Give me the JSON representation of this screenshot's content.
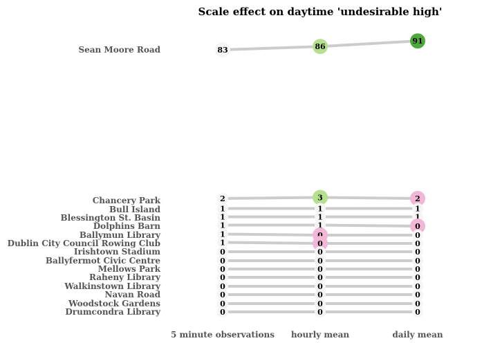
{
  "chart_data": {
    "type": "slope",
    "title": "Scale effect on daytime 'undesirable high'",
    "xlabel": "",
    "ylabel": "",
    "x": [
      "5 minute observations",
      "hourly mean",
      "daily mean"
    ],
    "series": [
      {
        "name": "Sean Moore Road",
        "values": [
          83,
          86,
          91
        ]
      },
      {
        "name": "Chancery Park",
        "values": [
          2,
          3,
          2
        ]
      },
      {
        "name": "Bull Island",
        "values": [
          1,
          1,
          1
        ]
      },
      {
        "name": "Blessington St. Basin",
        "values": [
          1,
          1,
          1
        ]
      },
      {
        "name": "Dolphins Barn",
        "values": [
          1,
          1,
          0
        ]
      },
      {
        "name": "Ballymun Library",
        "values": [
          1,
          0,
          0
        ]
      },
      {
        "name": "Dublin City Council Rowing Club",
        "values": [
          1,
          0,
          0
        ]
      },
      {
        "name": "Irishtown Stadium",
        "values": [
          0,
          0,
          0
        ]
      },
      {
        "name": "Ballyfermot Civic Centre",
        "values": [
          0,
          0,
          0
        ]
      },
      {
        "name": "Mellows Park",
        "values": [
          0,
          0,
          0
        ]
      },
      {
        "name": "Raheny Library",
        "values": [
          0,
          0,
          0
        ]
      },
      {
        "name": "Walkinstown Library",
        "values": [
          0,
          0,
          0
        ]
      },
      {
        "name": "Navan Road",
        "values": [
          0,
          0,
          0
        ]
      },
      {
        "name": "Woodstock Gardens",
        "values": [
          0,
          0,
          0
        ]
      },
      {
        "name": "Drumcondra Library",
        "values": [
          0,
          0,
          0
        ]
      }
    ],
    "marker_colors": {
      "increase": "#b5e08f",
      "strong_increase": "#4fa83d",
      "decrease": "#f2b6d6",
      "neutral": "#f7f4f6"
    },
    "line_color": "#cccccc",
    "grid": false,
    "legend": "none"
  }
}
